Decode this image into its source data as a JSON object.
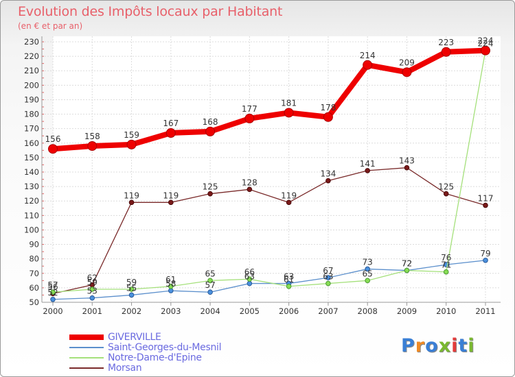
{
  "title": "Evolution des Impôts locaux par Habitant",
  "subtitle": "(en € et par an)",
  "logo": {
    "text": "Proxiti",
    "colors": [
      "#3a7fd5",
      "#f08a24",
      "#3a7fd5",
      "#7ab830",
      "#e33b3b",
      "#3a7fd5",
      "#7ab830"
    ]
  },
  "chart_data": {
    "type": "line",
    "x": [
      "2000",
      "2001",
      "2002",
      "2003",
      "2004",
      "2005",
      "2006",
      "2007",
      "2008",
      "2009",
      "2010",
      "2011"
    ],
    "yticks": [
      50,
      60,
      70,
      80,
      90,
      100,
      110,
      120,
      130,
      140,
      150,
      160,
      170,
      180,
      190,
      200,
      210,
      220,
      230
    ],
    "ylim": [
      50,
      230
    ],
    "grid": true,
    "legend_position": "bottom-left",
    "series": [
      {
        "name": "GIVERVILLE",
        "color": "#ee0000",
        "values": [
          156,
          158,
          159,
          167,
          168,
          177,
          181,
          178,
          214,
          209,
          223,
          224
        ]
      },
      {
        "name": "Saint-Georges-du-Mesnil",
        "color": "#5b8fcc",
        "values": [
          52,
          53,
          55,
          58,
          57,
          63,
          63,
          67,
          73,
          72,
          76,
          79
        ]
      },
      {
        "name": "Notre-Dame-d'Epine",
        "color": "#a4e07a",
        "values": [
          57,
          59,
          59,
          61,
          65,
          66,
          61,
          63,
          65,
          72,
          71,
          224
        ]
      },
      {
        "name": "Morsan",
        "color": "#7a2a2a",
        "values": [
          56,
          62,
          119,
          119,
          125,
          128,
          119,
          134,
          141,
          143,
          125,
          117
        ]
      }
    ]
  }
}
